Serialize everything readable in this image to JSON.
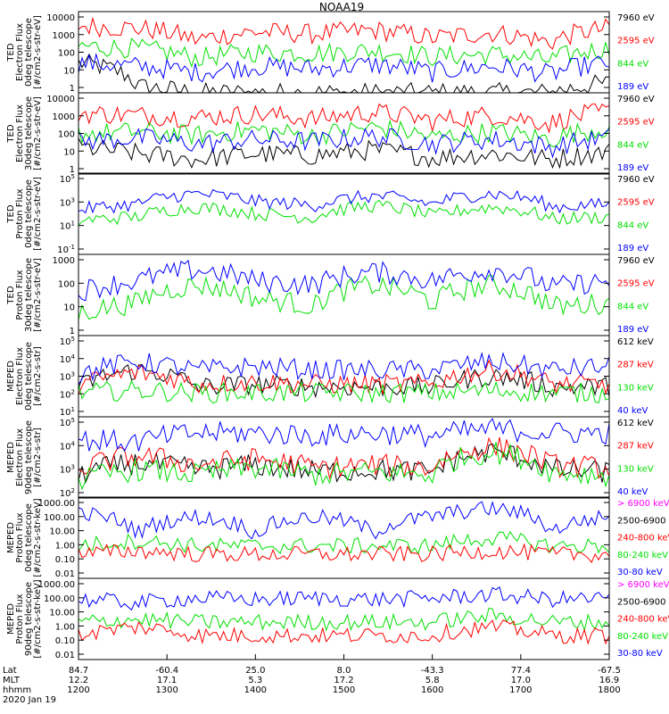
{
  "title": "NOAA19",
  "colors": {
    "black": "#000000",
    "red": "#ff0000",
    "green": "#00e000",
    "blue": "#0000ff",
    "magenta": "#ff00ff"
  },
  "chart_data": [
    {
      "type": "line",
      "panel": "ted-electron-0deg",
      "ylabel": [
        "TED",
        "Electron Flux",
        "0deg telescope",
        "[#/cm2-s-str-eV]"
      ],
      "yticks": [
        "10000",
        "1000",
        "100",
        "10",
        "1"
      ],
      "ylim": [
        1,
        10000
      ],
      "log": true,
      "legend": [
        {
          "label": "7960 eV",
          "color": "#000000"
        },
        {
          "label": "2595 eV",
          "color": "#ff0000"
        },
        {
          "label": "844 eV",
          "color": "#00e000"
        },
        {
          "label": "189 eV",
          "color": "#0000ff"
        }
      ],
      "series": [
        {
          "name": "7960 eV",
          "values": [
            30,
            2,
            1,
            1,
            1,
            1,
            1,
            1,
            1,
            3
          ]
        },
        {
          "name": "2595 eV",
          "values": [
            2000,
            1500,
            400,
            1000,
            800,
            1200,
            500,
            900,
            300,
            1500
          ]
        },
        {
          "name": "844 eV",
          "values": [
            200,
            150,
            50,
            100,
            90,
            120,
            60,
            80,
            40,
            150
          ]
        },
        {
          "name": "189 eV",
          "values": [
            30,
            20,
            10,
            20,
            15,
            25,
            10,
            20,
            8,
            30
          ]
        }
      ]
    },
    {
      "type": "line",
      "panel": "ted-electron-30deg",
      "ylabel": [
        "TED",
        "Electron Flux",
        "30deg telescope",
        "[#/cm2-s-str-eV]"
      ],
      "yticks": [
        "10000",
        "1000",
        "100",
        "10",
        "1"
      ],
      "ylim": [
        1,
        10000
      ],
      "log": true,
      "legend": [
        {
          "label": "7960 eV",
          "color": "#000000"
        },
        {
          "label": "2595 eV",
          "color": "#ff0000"
        },
        {
          "label": "844 eV",
          "color": "#00e000"
        },
        {
          "label": "189 eV",
          "color": "#0000ff"
        }
      ],
      "series": [
        {
          "name": "7960 eV",
          "values": [
            20,
            10,
            5,
            10,
            8,
            15,
            6,
            10,
            5,
            12
          ]
        },
        {
          "name": "2595 eV",
          "values": [
            1000,
            800,
            600,
            900,
            500,
            1100,
            400,
            800,
            300,
            1200
          ]
        },
        {
          "name": "844 eV",
          "values": [
            100,
            120,
            80,
            150,
            70,
            200,
            60,
            120,
            50,
            180
          ]
        },
        {
          "name": "189 eV",
          "values": [
            40,
            60,
            30,
            50,
            40,
            70,
            30,
            50,
            20,
            60
          ]
        }
      ]
    },
    {
      "type": "line",
      "panel": "ted-proton-0deg",
      "ylabel": [
        "TED",
        "Proton Flux",
        "0deg telescope",
        "[#/cm2-s-str-eV]"
      ],
      "yticks": [
        "10^5",
        "10^3",
        "10^1",
        "10^-1"
      ],
      "ylim": [
        0.1,
        100000
      ],
      "log": true,
      "legend": [
        {
          "label": "7960 eV",
          "color": "#000000"
        },
        {
          "label": "2595 eV",
          "color": "#ff0000"
        },
        {
          "label": "844 eV",
          "color": "#00e000"
        },
        {
          "label": "189 eV",
          "color": "#0000ff"
        }
      ],
      "series": [
        {
          "name": "844 eV",
          "values": [
            30,
            60,
            300,
            100,
            50,
            400,
            60,
            300,
            40,
            60
          ]
        },
        {
          "name": "189 eV",
          "values": [
            200,
            500,
            3000,
            800,
            400,
            2000,
            500,
            3000,
            300,
            500
          ]
        }
      ]
    },
    {
      "type": "line",
      "panel": "ted-proton-30deg",
      "ylabel": [
        "TED",
        "Proton Flux",
        "30deg telescope",
        "[#/cm2-s-str-eV]"
      ],
      "yticks": [
        "1000",
        "100",
        "10",
        "1"
      ],
      "ylim": [
        1,
        5000
      ],
      "log": true,
      "legend": [
        {
          "label": "7960 eV",
          "color": "#000000"
        },
        {
          "label": "2595 eV",
          "color": "#ff0000"
        },
        {
          "label": "844 eV",
          "color": "#00e000"
        },
        {
          "label": "189 eV",
          "color": "#0000ff"
        }
      ],
      "series": [
        {
          "name": "844 eV",
          "values": [
            10,
            30,
            200,
            50,
            20,
            200,
            30,
            200,
            20,
            30
          ]
        },
        {
          "name": "189 eV",
          "values": [
            100,
            300,
            1000,
            300,
            200,
            800,
            300,
            1000,
            150,
            300
          ]
        }
      ]
    },
    {
      "type": "line",
      "panel": "meped-electron-0deg",
      "ylabel": [
        "MEPED",
        "Electron Flux",
        "0deg telescope",
        "[#/cm2-s-str]"
      ],
      "yticks": [
        "10^5",
        "10^4",
        "10^3",
        "10^2",
        "10^1"
      ],
      "ylim": [
        10,
        100000
      ],
      "log": true,
      "legend": [
        {
          "label": "612 keV",
          "color": "#000000"
        },
        {
          "label": "287 keV",
          "color": "#ff0000"
        },
        {
          "label": "130 keV",
          "color": "#00e000"
        },
        {
          "label": "40 keV",
          "color": "#0000ff"
        }
      ],
      "series": [
        {
          "name": "612 keV",
          "values": [
            200,
            2000,
            300,
            400,
            300,
            300,
            300,
            1000,
            300,
            300
          ]
        },
        {
          "name": "287 keV",
          "values": [
            300,
            1500,
            400,
            500,
            400,
            400,
            400,
            2000,
            400,
            400
          ]
        },
        {
          "name": "130 keV",
          "values": [
            150,
            200,
            150,
            150,
            150,
            150,
            150,
            200,
            150,
            150
          ]
        },
        {
          "name": "40 keV",
          "values": [
            1000,
            5000,
            2000,
            3000,
            2000,
            2000,
            2000,
            5000,
            2000,
            3000
          ]
        }
      ]
    },
    {
      "type": "line",
      "panel": "meped-electron-90deg",
      "ylabel": [
        "MEPED",
        "Electron Flux",
        "90deg telescope",
        "[#/cm2-s-str]"
      ],
      "yticks": [
        "10^5",
        "10^4",
        "10^3",
        "10^2"
      ],
      "ylim": [
        30,
        100000
      ],
      "log": true,
      "legend": [
        {
          "label": "612 keV",
          "color": "#000000"
        },
        {
          "label": "287 keV",
          "color": "#ff0000"
        },
        {
          "label": "130 keV",
          "color": "#00e000"
        },
        {
          "label": "40 keV",
          "color": "#0000ff"
        }
      ],
      "series": [
        {
          "name": "612 keV",
          "values": [
            300,
            1000,
            500,
            800,
            400,
            500,
            400,
            3000,
            500,
            400
          ]
        },
        {
          "name": "287 keV",
          "values": [
            500,
            2000,
            800,
            1500,
            600,
            800,
            600,
            5000,
            800,
            600
          ]
        },
        {
          "name": "130 keV",
          "values": [
            150,
            500,
            300,
            600,
            300,
            400,
            300,
            3000,
            400,
            300
          ]
        },
        {
          "name": "40 keV",
          "values": [
            10000,
            8000,
            20000,
            20000,
            15000,
            20000,
            15000,
            30000,
            20000,
            20000
          ]
        }
      ]
    },
    {
      "type": "line",
      "panel": "meped-proton-0deg",
      "ylabel": [
        "MEPED",
        "Proton Flux",
        "0deg telescope",
        "[#/cm2-s-str-keV]"
      ],
      "yticks": [
        "1000.00",
        "100.00",
        "10.00",
        "1.00",
        "0.10",
        "0.01"
      ],
      "ylim": [
        0.01,
        1000
      ],
      "log": true,
      "legend": [
        {
          "label": "> 6900 keV",
          "color": "#ff00ff"
        },
        {
          "label": "2500-6900",
          "color": "#000000"
        },
        {
          "label": "240-800 keV",
          "color": "#ff0000"
        },
        {
          "label": "80-240 keV",
          "color": "#00e000"
        },
        {
          "label": "30-80 keV",
          "color": "#0000ff"
        }
      ],
      "series": [
        {
          "name": "30-80 keV",
          "values": [
            100,
            5,
            60,
            5,
            60,
            5,
            60,
            200,
            5,
            60
          ]
        },
        {
          "name": "80-240 keV",
          "values": [
            1,
            2,
            1,
            1,
            1,
            1,
            1,
            3,
            1,
            1
          ]
        },
        {
          "name": "240-800 keV",
          "values": [
            0.3,
            0.5,
            0.3,
            0.3,
            0.3,
            0.3,
            0.3,
            0.5,
            0.3,
            0.3
          ]
        }
      ]
    },
    {
      "type": "line",
      "panel": "meped-proton-90deg",
      "ylabel": [
        "MEPED",
        "Proton Flux",
        "90deg telescope",
        "[#/cm2-s-str-keV]"
      ],
      "yticks": [
        "1000.00",
        "100.00",
        "10.00",
        "1.00",
        "0.10",
        "0.01"
      ],
      "ylim": [
        0.01,
        1000
      ],
      "log": true,
      "legend": [
        {
          "label": "> 6900 keV",
          "color": "#ff00ff"
        },
        {
          "label": "2500-6900",
          "color": "#000000"
        },
        {
          "label": "240-800 keV",
          "color": "#ff0000"
        },
        {
          "label": "80-240 keV",
          "color": "#00e000"
        },
        {
          "label": "30-80 keV",
          "color": "#0000ff"
        }
      ],
      "series": [
        {
          "name": "30-80 keV",
          "values": [
            50,
            30,
            60,
            50,
            60,
            50,
            60,
            100,
            50,
            60
          ]
        },
        {
          "name": "80-240 keV",
          "values": [
            2,
            3,
            2,
            2,
            2,
            2,
            2,
            5,
            2,
            2
          ]
        },
        {
          "name": "240-800 keV",
          "values": [
            0.3,
            1,
            0.3,
            0.3,
            0.3,
            0.3,
            0.3,
            1,
            0.3,
            0.3
          ]
        }
      ]
    }
  ],
  "x_axis": {
    "row_labels": [
      "Lat",
      "MLT",
      "hhmm",
      "2020 Jan 19"
    ],
    "ticks": [
      {
        "lat": "84.7",
        "mlt": "12.2",
        "hhmm": "1200"
      },
      {
        "lat": "-60.4",
        "mlt": "17.1",
        "hhmm": "1300"
      },
      {
        "lat": "25.0",
        "mlt": "5.3",
        "hhmm": "1400"
      },
      {
        "lat": "8.0",
        "mlt": "17.2",
        "hhmm": "1500"
      },
      {
        "lat": "-43.3",
        "mlt": "5.8",
        "hhmm": "1600"
      },
      {
        "lat": "77.4",
        "mlt": "17.0",
        "hhmm": "1700"
      },
      {
        "lat": "-67.5",
        "mlt": "16.9",
        "hhmm": "1800"
      }
    ]
  }
}
